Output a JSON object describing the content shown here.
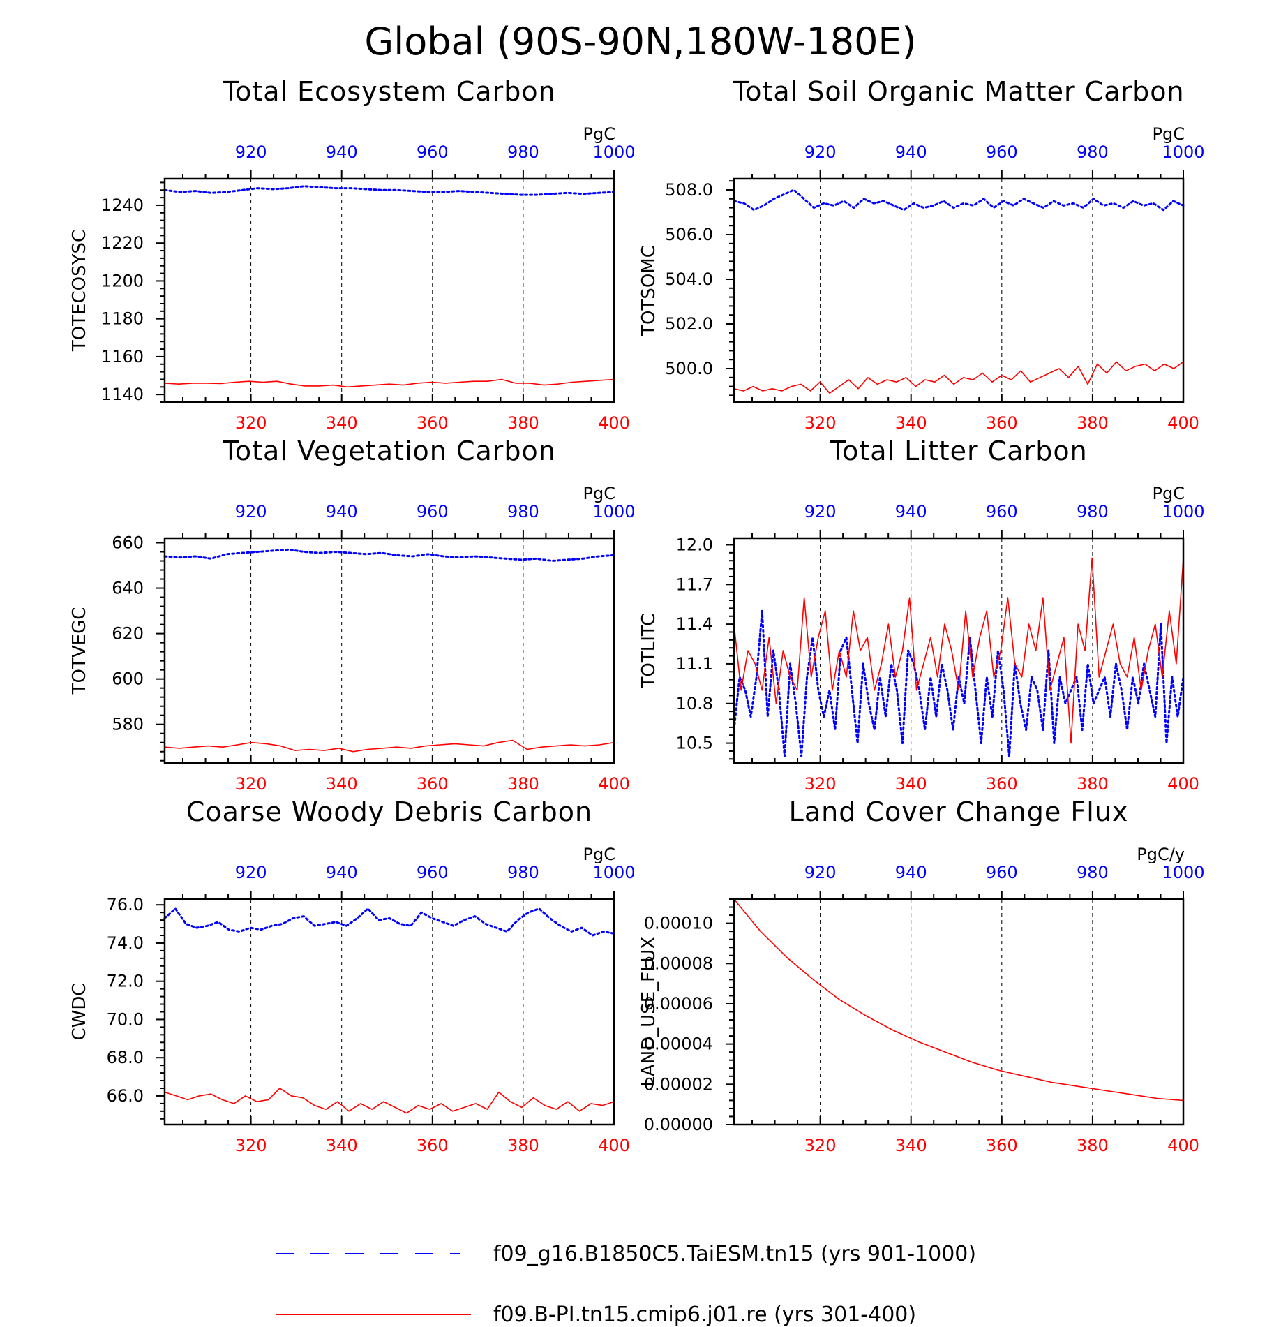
{
  "figure_title": "Global (90S-90N,180W-180E)",
  "colors": {
    "case": "#0000ff",
    "ref": "#ff0000"
  },
  "legend": {
    "case_label": "f09_g16.B1850C5.TaiESM.tn15 (yrs 901-1000)",
    "ref_label": "f09.B-PI.tn15.cmip6.j01.re (yrs 301-400)"
  },
  "chart_data": [
    {
      "type": "line",
      "title": "Total Ecosystem Carbon",
      "ylabel": "TOTECOSYSC",
      "units": "PgC",
      "ylim": [
        1136,
        1254
      ],
      "yticks": [
        "1140",
        "1160",
        "1180",
        "1200",
        "1220",
        "1240"
      ],
      "bottom_axis": {
        "range": [
          301,
          400
        ],
        "ticks": [
          "320",
          "340",
          "360",
          "380",
          "400"
        ]
      },
      "top_axis": {
        "range": [
          901,
          1000
        ],
        "ticks": [
          "920",
          "940",
          "960",
          "980",
          "1000"
        ]
      },
      "series": [
        {
          "axis": "top",
          "style": "dotted",
          "x_start": 901,
          "x_end": 1000,
          "values": [
            1248,
            1247,
            1247.5,
            1246.5,
            1247,
            1248,
            1249,
            1248.5,
            1249,
            1250,
            1249.5,
            1249,
            1249,
            1248.5,
            1248,
            1248,
            1247.5,
            1247,
            1247,
            1247.5,
            1247,
            1246.5,
            1246,
            1245.5,
            1245.5,
            1246,
            1246.5,
            1246,
            1246.5,
            1247
          ]
        },
        {
          "axis": "bottom",
          "style": "solid",
          "x_start": 301,
          "x_end": 400,
          "values": [
            1146,
            1145.5,
            1146,
            1146,
            1145.8,
            1146.5,
            1147,
            1146.5,
            1147,
            1145.5,
            1144.5,
            1144.5,
            1145,
            1144,
            1144.5,
            1145,
            1145.5,
            1145,
            1146,
            1146.5,
            1146,
            1146.5,
            1147,
            1147,
            1148,
            1146,
            1146,
            1145,
            1145.5,
            1146.5,
            1147,
            1147.5,
            1148
          ]
        }
      ]
    },
    {
      "type": "line",
      "title": "Total Soil Organic Matter Carbon",
      "ylabel": "TOTSOMC",
      "units": "PgC",
      "ylim": [
        498.5,
        508.5
      ],
      "yticks": [
        "500.0",
        "502.0",
        "504.0",
        "506.0",
        "508.0"
      ],
      "bottom_axis": {
        "range": [
          301,
          400
        ],
        "ticks": [
          "320",
          "340",
          "360",
          "380",
          "400"
        ]
      },
      "top_axis": {
        "range": [
          901,
          1000
        ],
        "ticks": [
          "920",
          "940",
          "960",
          "980",
          "1000"
        ]
      },
      "series": [
        {
          "axis": "top",
          "style": "dotted",
          "x_start": 901,
          "x_end": 1000,
          "values": [
            507.5,
            507.4,
            507.1,
            507.3,
            507.6,
            507.8,
            508.0,
            507.6,
            507.2,
            507.4,
            507.3,
            507.5,
            507.2,
            507.6,
            507.4,
            507.5,
            507.3,
            507.1,
            507.4,
            507.2,
            507.3,
            507.5,
            507.2,
            507.4,
            507.3,
            507.6,
            507.2,
            507.5,
            507.3,
            507.6,
            507.4,
            507.2,
            507.5,
            507.3,
            507.4,
            507.2,
            507.6,
            507.3,
            507.4,
            507.2,
            507.5,
            507.3,
            507.4,
            507.1,
            507.5,
            507.3
          ]
        },
        {
          "axis": "bottom",
          "style": "solid",
          "x_start": 301,
          "x_end": 400,
          "values": [
            499.1,
            499.0,
            499.2,
            499.0,
            499.1,
            499.0,
            499.2,
            499.3,
            499.0,
            499.4,
            498.9,
            499.2,
            499.5,
            499.1,
            499.6,
            499.3,
            499.5,
            499.4,
            499.6,
            499.2,
            499.5,
            499.4,
            499.7,
            499.3,
            499.6,
            499.5,
            499.8,
            499.4,
            499.7,
            499.5,
            499.9,
            499.4,
            499.6,
            499.8,
            500.0,
            499.6,
            500.1,
            499.3,
            500.2,
            499.8,
            500.3,
            499.9,
            500.1,
            500.2,
            499.9,
            500.2,
            500.0,
            500.3
          ]
        }
      ]
    },
    {
      "type": "line",
      "title": "Total Vegetation Carbon",
      "ylabel": "TOTVEGC",
      "units": "PgC",
      "ylim": [
        563,
        662
      ],
      "yticks": [
        "580",
        "600",
        "620",
        "640",
        "660"
      ],
      "bottom_axis": {
        "range": [
          301,
          400
        ],
        "ticks": [
          "320",
          "340",
          "360",
          "380",
          "400"
        ]
      },
      "top_axis": {
        "range": [
          901,
          1000
        ],
        "ticks": [
          "920",
          "940",
          "960",
          "980",
          "1000"
        ]
      },
      "series": [
        {
          "axis": "top",
          "style": "dotted",
          "x_start": 901,
          "x_end": 1000,
          "values": [
            654,
            653.5,
            654,
            653,
            655,
            655.5,
            656,
            656.5,
            657,
            656,
            655.5,
            656,
            655.5,
            655,
            655.5,
            654.5,
            654,
            655,
            654,
            653.5,
            654,
            653.5,
            653,
            652.5,
            653,
            652,
            652.5,
            653,
            654,
            654.5
          ]
        },
        {
          "axis": "bottom",
          "style": "solid",
          "x_start": 301,
          "x_end": 400,
          "values": [
            570,
            569.5,
            570,
            570.5,
            570,
            571,
            572,
            571.5,
            570.5,
            568.5,
            569,
            568.5,
            569.5,
            568,
            569,
            569.5,
            570,
            569.5,
            570.5,
            571,
            571.5,
            571,
            570.5,
            572,
            573,
            569,
            570,
            570.5,
            571,
            570.5,
            571,
            572
          ]
        }
      ]
    },
    {
      "type": "line",
      "title": "Total Litter Carbon",
      "ylabel": "TOTLITC",
      "units": "PgC",
      "ylim": [
        10.35,
        12.05
      ],
      "yticks": [
        "10.5",
        "10.8",
        "11.1",
        "11.4",
        "11.7",
        "12.0"
      ],
      "bottom_axis": {
        "range": [
          301,
          400
        ],
        "ticks": [
          "320",
          "340",
          "360",
          "380",
          "400"
        ]
      },
      "top_axis": {
        "range": [
          901,
          1000
        ],
        "ticks": [
          "920",
          "940",
          "960",
          "980",
          "1000"
        ]
      },
      "series": [
        {
          "axis": "top",
          "style": "dotted",
          "x_start": 901,
          "x_end": 1000,
          "values": [
            10.6,
            11.0,
            10.9,
            10.7,
            11.0,
            11.5,
            10.7,
            11.2,
            10.9,
            10.4,
            11.1,
            10.8,
            10.4,
            11.0,
            11.3,
            10.9,
            10.7,
            10.9,
            10.6,
            11.2,
            11.3,
            10.9,
            10.5,
            11.1,
            10.8,
            10.6,
            11.0,
            10.7,
            11.1,
            10.9,
            10.5,
            11.2,
            11.1,
            10.9,
            10.6,
            11.0,
            10.7,
            11.1,
            10.9,
            10.6,
            11.0,
            10.8,
            11.3,
            10.9,
            10.5,
            11.0,
            10.7,
            11.2,
            10.9,
            10.4,
            11.1,
            10.8,
            10.6,
            11.0,
            10.9,
            10.6,
            11.2,
            10.5,
            11.0,
            10.8,
            10.9,
            11.0,
            10.6,
            11.1,
            10.8,
            10.9,
            11.0,
            10.7,
            11.1,
            10.9,
            10.6,
            11.0,
            10.8,
            11.1,
            10.9,
            10.7,
            11.4,
            10.5,
            11.0,
            10.7,
            11.0
          ]
        },
        {
          "axis": "bottom",
          "style": "solid",
          "x_start": 301,
          "x_end": 400,
          "values": [
            11.4,
            10.9,
            11.2,
            11.1,
            10.9,
            11.3,
            10.8,
            11.2,
            11.0,
            10.9,
            11.6,
            11.0,
            11.3,
            11.5,
            10.9,
            11.2,
            11.0,
            11.5,
            11.2,
            11.3,
            10.9,
            11.1,
            11.4,
            11.0,
            11.2,
            11.6,
            10.9,
            11.1,
            11.3,
            11.0,
            11.4,
            11.2,
            10.9,
            11.5,
            11.0,
            11.3,
            11.5,
            11.0,
            11.2,
            11.6,
            11.1,
            11.0,
            11.4,
            11.2,
            11.6,
            10.9,
            11.1,
            11.3,
            10.5,
            11.4,
            11.2,
            11.9,
            11.0,
            11.2,
            11.4,
            11.1,
            11.0,
            11.3,
            10.9,
            11.2,
            11.4,
            11.0,
            11.5,
            11.1,
            11.9
          ]
        }
      ]
    },
    {
      "type": "line",
      "title": "Coarse Woody Debris Carbon",
      "ylabel": "CWDC",
      "units": "PgC",
      "ylim": [
        64.5,
        76.3
      ],
      "yticks": [
        "66.0",
        "68.0",
        "70.0",
        "72.0",
        "74.0",
        "76.0"
      ],
      "bottom_axis": {
        "range": [
          301,
          400
        ],
        "ticks": [
          "320",
          "340",
          "360",
          "380",
          "400"
        ]
      },
      "top_axis": {
        "range": [
          901,
          1000
        ],
        "ticks": [
          "920",
          "940",
          "960",
          "980",
          "1000"
        ]
      },
      "series": [
        {
          "axis": "top",
          "style": "dotted",
          "x_start": 901,
          "x_end": 1000,
          "values": [
            75.3,
            75.8,
            75.0,
            74.8,
            74.9,
            75.1,
            74.7,
            74.6,
            74.8,
            74.7,
            74.9,
            75.0,
            75.3,
            75.4,
            74.9,
            75.0,
            75.1,
            74.9,
            75.3,
            75.8,
            75.2,
            75.3,
            75.0,
            74.9,
            75.6,
            75.3,
            75.1,
            74.9,
            75.2,
            75.4,
            75.0,
            74.8,
            74.6,
            75.2,
            75.6,
            75.8,
            75.3,
            74.9,
            74.6,
            74.8,
            74.4,
            74.6,
            74.5
          ]
        },
        {
          "axis": "bottom",
          "style": "solid",
          "x_start": 301,
          "x_end": 400,
          "values": [
            66.2,
            66.0,
            65.8,
            66.0,
            66.1,
            65.8,
            65.6,
            66.0,
            65.7,
            65.8,
            66.4,
            66.0,
            65.9,
            65.5,
            65.3,
            65.7,
            65.2,
            65.6,
            65.3,
            65.7,
            65.4,
            65.1,
            65.5,
            65.3,
            65.6,
            65.2,
            65.4,
            65.6,
            65.3,
            66.2,
            65.7,
            65.4,
            65.9,
            65.5,
            65.3,
            65.7,
            65.2,
            65.6,
            65.5,
            65.7
          ]
        }
      ]
    },
    {
      "type": "line",
      "title": "Land Cover Change Flux",
      "ylabel": "LAND_USE_FLUX",
      "units": "PgC/y",
      "ylim": [
        0,
        0.000112
      ],
      "yticks": [
        "0.00000",
        "0.00002",
        "0.00004",
        "0.00006",
        "0.00008",
        "0.00010"
      ],
      "bottom_axis": {
        "range": [
          301,
          400
        ],
        "ticks": [
          "320",
          "340",
          "360",
          "380",
          "400"
        ]
      },
      "top_axis": {
        "range": [
          901,
          1000
        ],
        "ticks": [
          "920",
          "940",
          "960",
          "980",
          "1000"
        ]
      },
      "series": [
        {
          "axis": "bottom",
          "style": "solid",
          "x_start": 301,
          "x_end": 400,
          "values": [
            0.000112,
            9.6e-05,
            8.3e-05,
            7.2e-05,
            6.2e-05,
            5.4e-05,
            4.7e-05,
            4.1e-05,
            3.6e-05,
            3.1e-05,
            2.7e-05,
            2.4e-05,
            2.1e-05,
            1.9e-05,
            1.7e-05,
            1.5e-05,
            1.3e-05,
            1.2e-05
          ]
        }
      ]
    }
  ]
}
